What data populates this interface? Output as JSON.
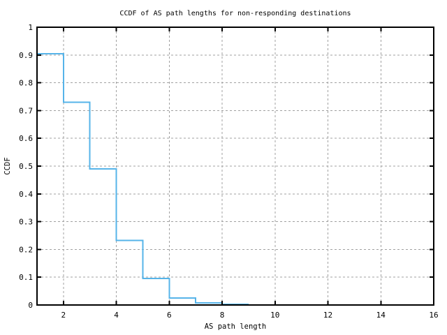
{
  "chart_data": {
    "type": "line",
    "line_style": "step-post",
    "title": "CCDF of AS path lengths for non-responding destinations",
    "xlabel": "AS path length",
    "ylabel": "CCDF",
    "xlim": [
      1,
      16
    ],
    "ylim": [
      0,
      1
    ],
    "xticks": [
      2,
      4,
      6,
      8,
      10,
      12,
      14,
      16
    ],
    "xtick_labels": [
      "2",
      "4",
      "6",
      "8",
      "10",
      "12",
      "14",
      "16"
    ],
    "yticks": [
      0,
      0.1,
      0.2,
      0.3,
      0.4,
      0.5,
      0.6,
      0.7,
      0.8,
      0.9,
      1
    ],
    "ytick_labels": [
      "0",
      "0.1",
      "0.2",
      "0.3",
      "0.4",
      "0.5",
      "0.6",
      "0.7",
      "0.8",
      "0.9",
      "1"
    ],
    "grid": "dashed",
    "legend": "none",
    "colors": {
      "line": "#56b4e9",
      "grid": "#a0a0a0",
      "axis": "#000000",
      "text": "#000000",
      "background": "#ffffff"
    },
    "series": [
      {
        "name": "CCDF",
        "step_x": [
          1,
          2,
          3,
          4,
          5,
          6,
          7,
          8,
          9
        ],
        "step_y": [
          0.905,
          0.73,
          0.49,
          0.233,
          0.096,
          0.025,
          0.008,
          0.002
        ]
      }
    ]
  }
}
